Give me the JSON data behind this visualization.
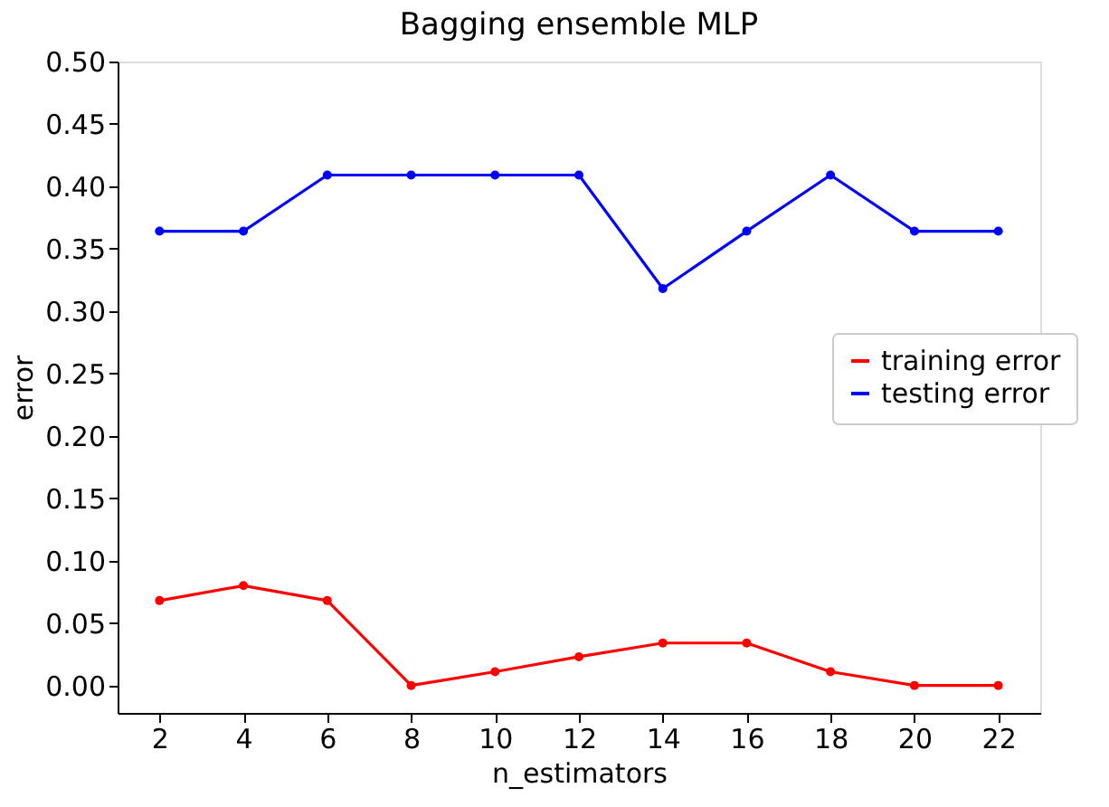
{
  "chart_data": {
    "type": "line",
    "title": "Bagging ensemble MLP",
    "xlabel": "n_estimators",
    "ylabel": "error",
    "x": [
      2,
      4,
      6,
      8,
      10,
      12,
      14,
      16,
      18,
      20,
      22
    ],
    "series": [
      {
        "name": "training error",
        "color": "#ff0000",
        "values": [
          0.068,
          0.08,
          0.068,
          0.0,
          0.011,
          0.023,
          0.034,
          0.034,
          0.011,
          0.0,
          0.0
        ]
      },
      {
        "name": "testing error",
        "color": "#0000ff",
        "values": [
          0.364,
          0.364,
          0.409,
          0.409,
          0.409,
          0.409,
          0.318,
          0.364,
          0.409,
          0.364,
          0.364
        ]
      }
    ],
    "xlim": [
      1,
      23
    ],
    "xticks": [
      2,
      4,
      6,
      8,
      10,
      12,
      14,
      16,
      18,
      20,
      22
    ],
    "ylim": [
      -0.022,
      0.5
    ],
    "yticks": [
      {
        "value": 0.0,
        "label": "0.00"
      },
      {
        "value": 0.05,
        "label": "0.05"
      },
      {
        "value": 0.1,
        "label": "0.10"
      },
      {
        "value": 0.15,
        "label": "0.15"
      },
      {
        "value": 0.2,
        "label": "0.20"
      },
      {
        "value": 0.25,
        "label": "0.25"
      },
      {
        "value": 0.3,
        "label": "0.30"
      },
      {
        "value": 0.35,
        "label": "0.35"
      },
      {
        "value": 0.4,
        "label": "0.40"
      },
      {
        "value": 0.45,
        "label": "0.45"
      },
      {
        "value": 0.5,
        "label": "0.50"
      }
    ],
    "marker": "circle",
    "line_style": "solid",
    "legend": "right",
    "grid": false
  }
}
